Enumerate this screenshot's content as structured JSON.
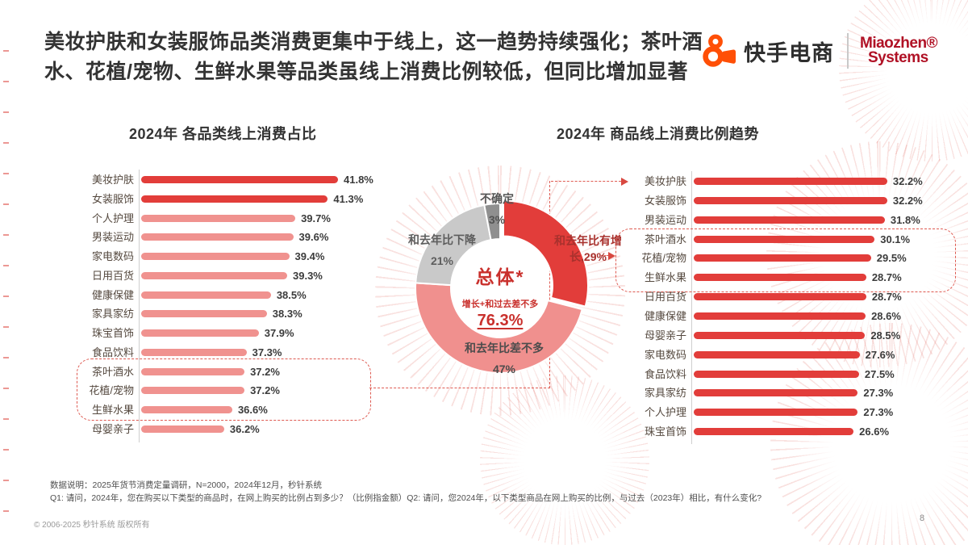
{
  "slide": {
    "title_lines": [
      "美妆护肤和女装服饰品类消费更集中于线上，这一趋势持续强化；茶叶酒",
      "水、花植/宠物、生鲜水果等品类虽线上消费比例较低，但同比增加显著"
    ],
    "page_number": "8",
    "copyright": "© 2006-2025 秒针系统 版权所有",
    "notes": [
      "数据说明：2025年货节消费定量调研，N=2000，2024年12月，秒针系统",
      "Q1: 请问，2024年，您在购买以下类型的商品时，在网上购买的比例占到多少？（比例指金额）Q2: 请问，您2024年，以下类型商品在网上购买的比例，与过去（2023年）相比，有什么变化?"
    ]
  },
  "brand": {
    "kuaishou": "快手电商",
    "miaozhen_line1": "Miaozhen®",
    "miaozhen_line2": "Systems"
  },
  "colors": {
    "bar_dark": "#e23d3a",
    "bar_light": "#f0928f",
    "accent_red": "#c9302c",
    "dashed_line": "#d84840",
    "kuaishou_orange": "#ff4f06",
    "miaozhen_red": "#b01125"
  },
  "chart_data": [
    {
      "type": "bar",
      "title": "2024年 各品类线上消费占比",
      "orientation": "horizontal",
      "unit": "%",
      "xlim": [
        36,
        42
      ],
      "categories": [
        "美妆护肤",
        "女装服饰",
        "个人护理",
        "男装运动",
        "家电数码",
        "日用百货",
        "健康保健",
        "家具家纺",
        "珠宝首饰",
        "食品饮料",
        "茶叶酒水",
        "花植/宠物",
        "生鲜水果",
        "母婴亲子"
      ],
      "values": [
        41.8,
        41.3,
        39.7,
        39.6,
        39.4,
        39.3,
        38.5,
        38.3,
        37.9,
        37.3,
        37.2,
        37.2,
        36.6,
        36.2
      ],
      "highlighted_top_categories": [
        "美妆护肤",
        "女装服饰"
      ],
      "boxed_categories": [
        "茶叶酒水",
        "花植/宠物",
        "生鲜水果"
      ]
    },
    {
      "type": "donut",
      "center": {
        "title": "总体*",
        "subtitle": "增长+和过去差不多",
        "value": "76.3%"
      },
      "segments": [
        {
          "label": "和去年比有增长",
          "value": 29,
          "color": "#e23d3a"
        },
        {
          "label": "和去年比差不多",
          "value": 47,
          "color": "#f0908e"
        },
        {
          "label": "和去年比下降",
          "value": 21,
          "color": "#c9c9c9"
        },
        {
          "label": "不确定",
          "value": 3,
          "color": "#8f8f8f"
        }
      ]
    },
    {
      "type": "bar",
      "title": "2024年 商品线上消费比例趋势",
      "orientation": "horizontal",
      "unit": "%",
      "xlim": [
        0,
        33
      ],
      "categories": [
        "美妆护肤",
        "女装服饰",
        "男装运动",
        "茶叶酒水",
        "花植/宠物",
        "生鲜水果",
        "日用百货",
        "健康保健",
        "母婴亲子",
        "家电数码",
        "食品饮料",
        "家具家纺",
        "个人护理",
        "珠宝首饰"
      ],
      "values": [
        32.2,
        32.2,
        31.8,
        30.1,
        29.5,
        28.7,
        28.7,
        28.6,
        28.5,
        27.6,
        27.5,
        27.3,
        27.3,
        26.6
      ],
      "boxed_categories": [
        "茶叶酒水",
        "花植/宠物",
        "生鲜水果"
      ]
    }
  ]
}
